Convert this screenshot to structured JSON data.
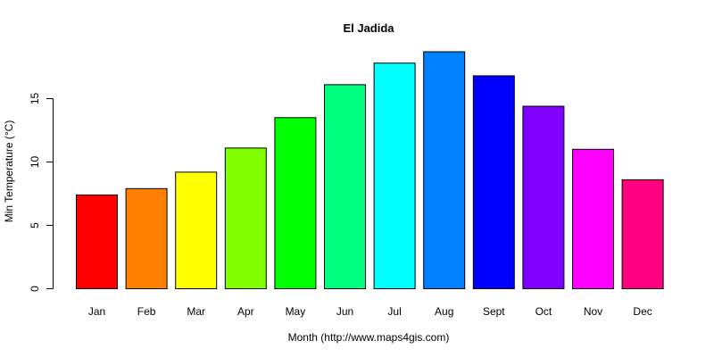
{
  "chart_data": {
    "type": "bar",
    "title": "El Jadida",
    "xlabel": "Month (http://www.maps4gis.com)",
    "ylabel": "Min Temperature (°C)",
    "categories": [
      "Jan",
      "Feb",
      "Mar",
      "Apr",
      "May",
      "Jun",
      "Jul",
      "Aug",
      "Sept",
      "Oct",
      "Nov",
      "Dec"
    ],
    "values": [
      7.4,
      7.9,
      9.2,
      11.1,
      13.5,
      16.1,
      17.8,
      18.7,
      16.8,
      14.4,
      11.0,
      8.6
    ],
    "colors": [
      "#FF0000",
      "#FF8000",
      "#FFFF00",
      "#80FF00",
      "#00FF00",
      "#00FF80",
      "#00FFFF",
      "#0080FF",
      "#0000FF",
      "#8000FF",
      "#FF00FF",
      "#FF0080"
    ],
    "yticks": [
      0,
      5,
      10,
      15
    ],
    "ylim": [
      0,
      18.7
    ],
    "grid": false,
    "legend": null
  }
}
